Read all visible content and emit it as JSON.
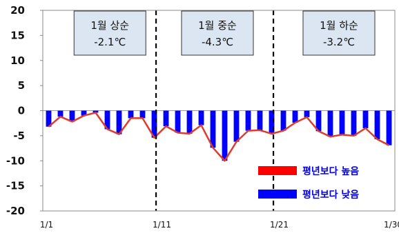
{
  "chart_data": {
    "type": "bar",
    "ylim": [
      -20,
      20
    ],
    "yticks": [
      "20",
      "15",
      "10",
      "5",
      "0",
      "-5",
      "-10",
      "-15",
      "-20"
    ],
    "xtick_labels": [
      "1/1",
      "1/11",
      "1/21",
      "1/30"
    ],
    "days": [
      1,
      2,
      3,
      4,
      5,
      6,
      7,
      8,
      9,
      10,
      11,
      12,
      13,
      14,
      15,
      16,
      17,
      18,
      19,
      20,
      21,
      22,
      23,
      24,
      25,
      26,
      27,
      28,
      29,
      30
    ],
    "series": [
      {
        "name": "평년보다 높음",
        "color": "#ff0000",
        "values": [
          -3.2,
          -1.2,
          -2.2,
          -1.0,
          -0.4,
          -3.7,
          -4.7,
          -1.5,
          -1.5,
          -5.4,
          -3.1,
          -4.4,
          -4.6,
          -2.9,
          -7.4,
          -10.0,
          -6.2,
          -4.0,
          -3.9,
          -4.6,
          -4.0,
          -2.4,
          -1.3,
          -4.1,
          -5.2,
          -4.8,
          -5.0,
          -3.5,
          -5.7,
          -6.9
        ]
      },
      {
        "name": "평년보다 낮음",
        "color": "#0000ff",
        "values": [
          -3.2,
          -1.2,
          -2.2,
          -1.0,
          -0.4,
          -3.7,
          -4.7,
          -1.5,
          -1.5,
          -5.4,
          -3.1,
          -4.4,
          -4.6,
          -2.9,
          -7.4,
          -10.0,
          -6.2,
          -4.0,
          -3.9,
          -4.6,
          -4.0,
          -2.4,
          -1.3,
          -4.1,
          -5.2,
          -4.8,
          -5.0,
          -3.5,
          -5.7,
          -6.9
        ]
      }
    ],
    "dividers_after_day": [
      10,
      20
    ],
    "annotations": [
      {
        "line1": "1월 상순",
        "line2": "-2.1℃"
      },
      {
        "line1": "1월 중순",
        "line2": "-4.3℃"
      },
      {
        "line1": "1월 하순",
        "line2": "-3.2℃"
      }
    ],
    "legend": [
      {
        "label": "평년보다 높음",
        "color": "#ff0000"
      },
      {
        "label": "평년보다 낮음",
        "color": "#0000ff"
      }
    ]
  }
}
